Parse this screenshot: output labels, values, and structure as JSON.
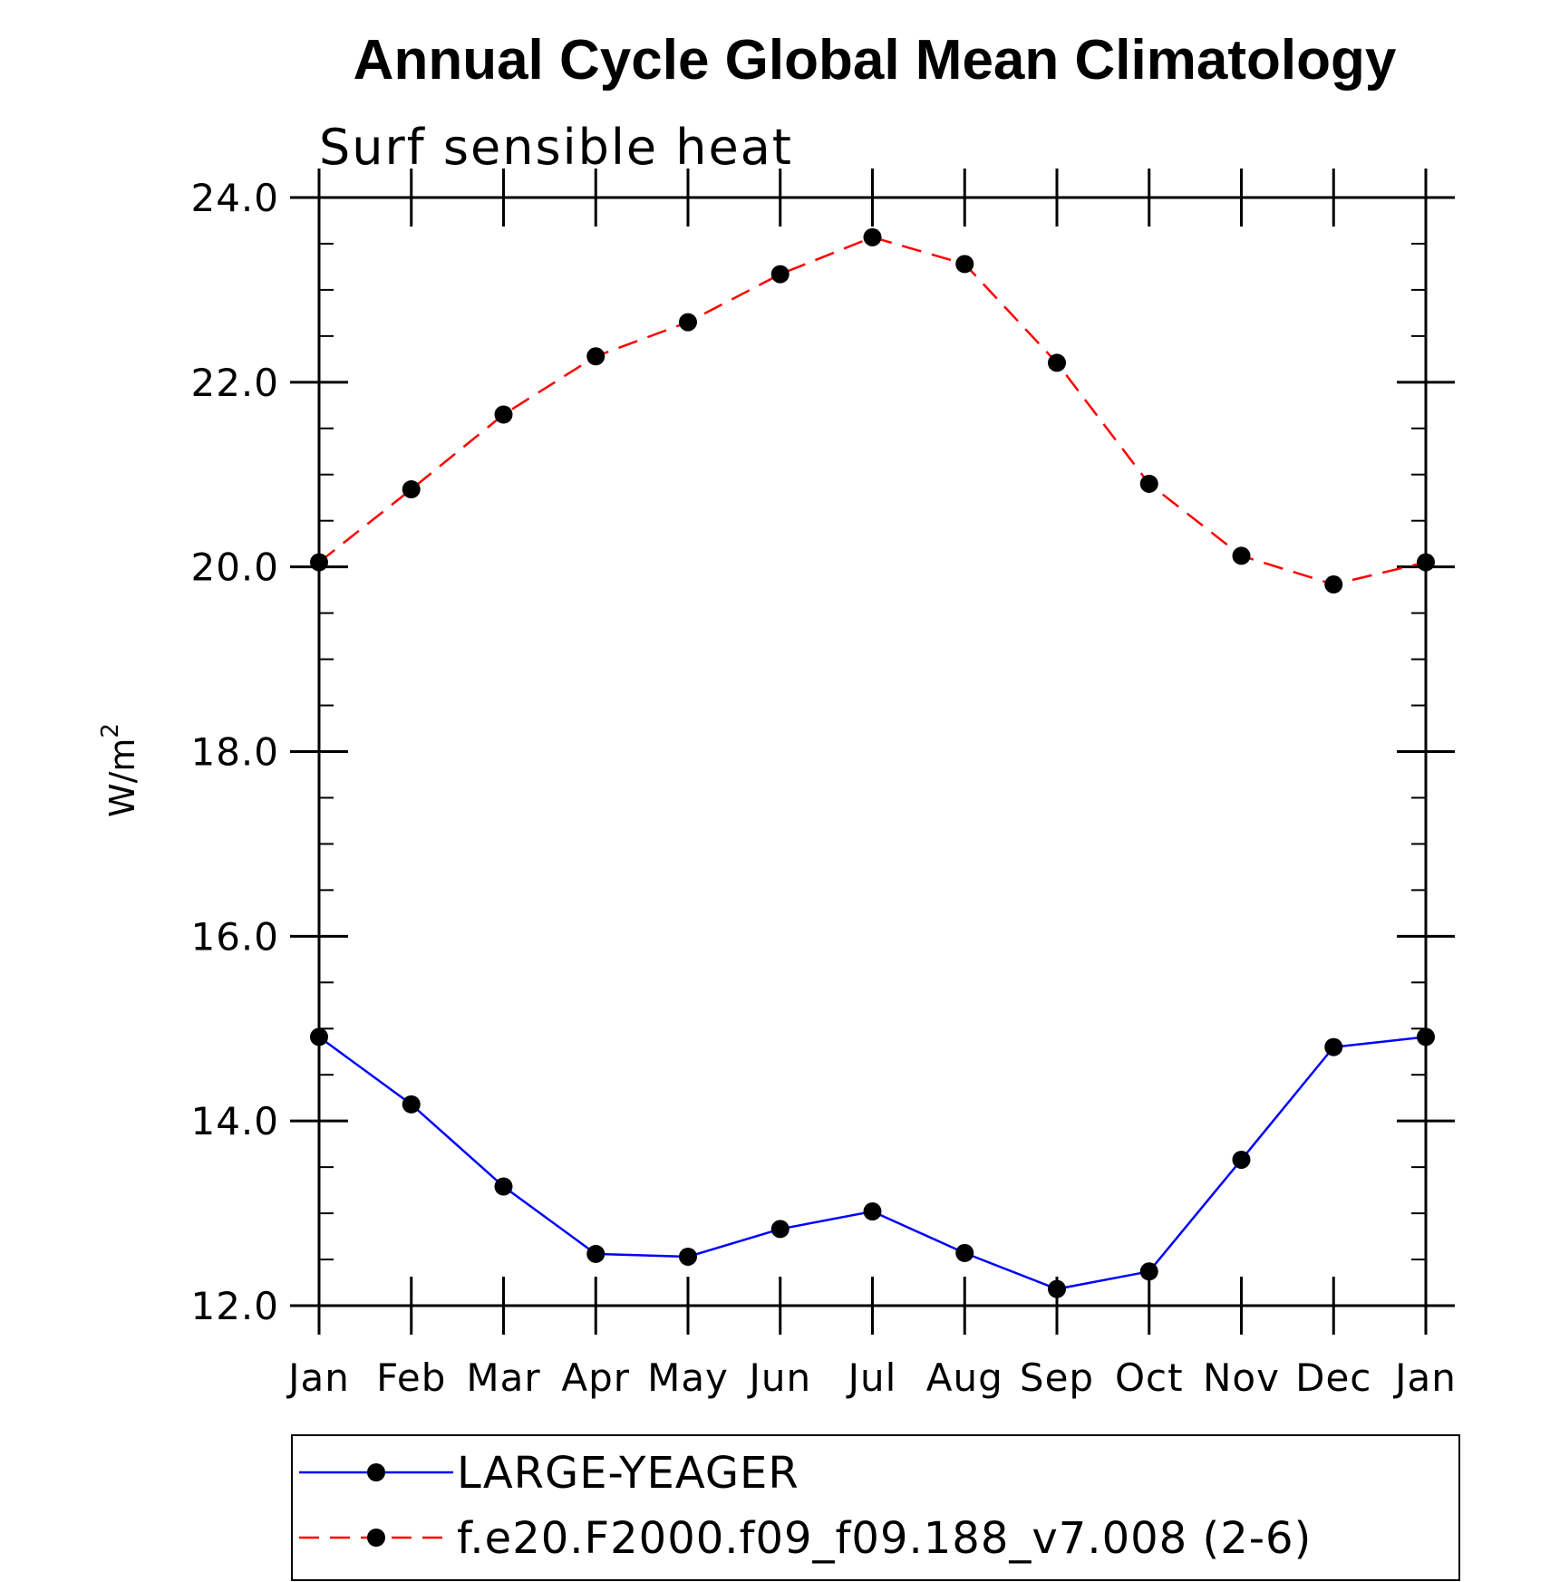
{
  "chart_data": {
    "type": "line",
    "title": "Annual Cycle Global Mean Climatology",
    "subtitle": "Surf sensible heat",
    "ylabel": "W/m",
    "ylabel_superscript": "2",
    "xlabel": "",
    "categories": [
      "Jan",
      "Feb",
      "Mar",
      "Apr",
      "May",
      "Jun",
      "Jul",
      "Aug",
      "Sep",
      "Oct",
      "Nov",
      "Dec",
      "Jan"
    ],
    "ylim": [
      12.0,
      24.0
    ],
    "yticks": [
      "12.0",
      "14.0",
      "16.0",
      "18.0",
      "20.0",
      "22.0",
      "24.0"
    ],
    "grid": false,
    "legend_position": "bottom",
    "series": [
      {
        "name": "LARGE-YEAGER",
        "color": "#0000ff",
        "dash": "solid",
        "marker": "filled-circle",
        "values": [
          14.91,
          14.18,
          13.29,
          12.56,
          12.53,
          12.83,
          13.02,
          12.57,
          12.18,
          12.37,
          13.58,
          14.8,
          14.91
        ]
      },
      {
        "name": "f.e20.F2000.f09_f09.188_v7.008 (2-6)",
        "color": "#ff0000",
        "dash": "dashed",
        "marker": "filled-circle",
        "values": [
          20.05,
          20.84,
          21.65,
          22.28,
          22.65,
          23.17,
          23.57,
          23.28,
          22.21,
          20.9,
          20.12,
          19.81,
          20.05
        ]
      }
    ]
  }
}
